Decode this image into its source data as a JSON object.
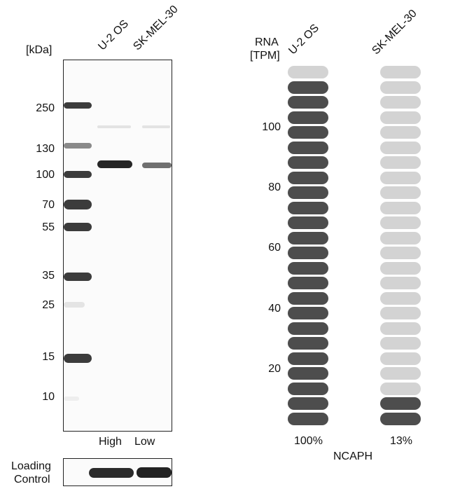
{
  "western_blot": {
    "kda_label": "[kDa]",
    "lanes": [
      "U-2 OS",
      "SK-MEL-30"
    ],
    "markers": [
      "250",
      "130",
      "100",
      "70",
      "55",
      "35",
      "25",
      "15",
      "10"
    ],
    "load_labels": [
      "High",
      "Low"
    ],
    "loading_control": [
      "Loading",
      "Control"
    ]
  },
  "rna_panel": {
    "title_line1": "RNA",
    "title_line2": "[TPM]",
    "y_ticks": [
      "100",
      "80",
      "60",
      "40",
      "20"
    ],
    "gene": "NCAPH",
    "samples": [
      {
        "name": "U-2 OS",
        "percent": "100%",
        "filled": 23,
        "total": 24
      },
      {
        "name": "SK-MEL-30",
        "percent": "13%",
        "filled": 2,
        "total": 24
      }
    ],
    "colors": {
      "filled": "#4d4d4d",
      "empty": "#d3d3d3"
    }
  }
}
